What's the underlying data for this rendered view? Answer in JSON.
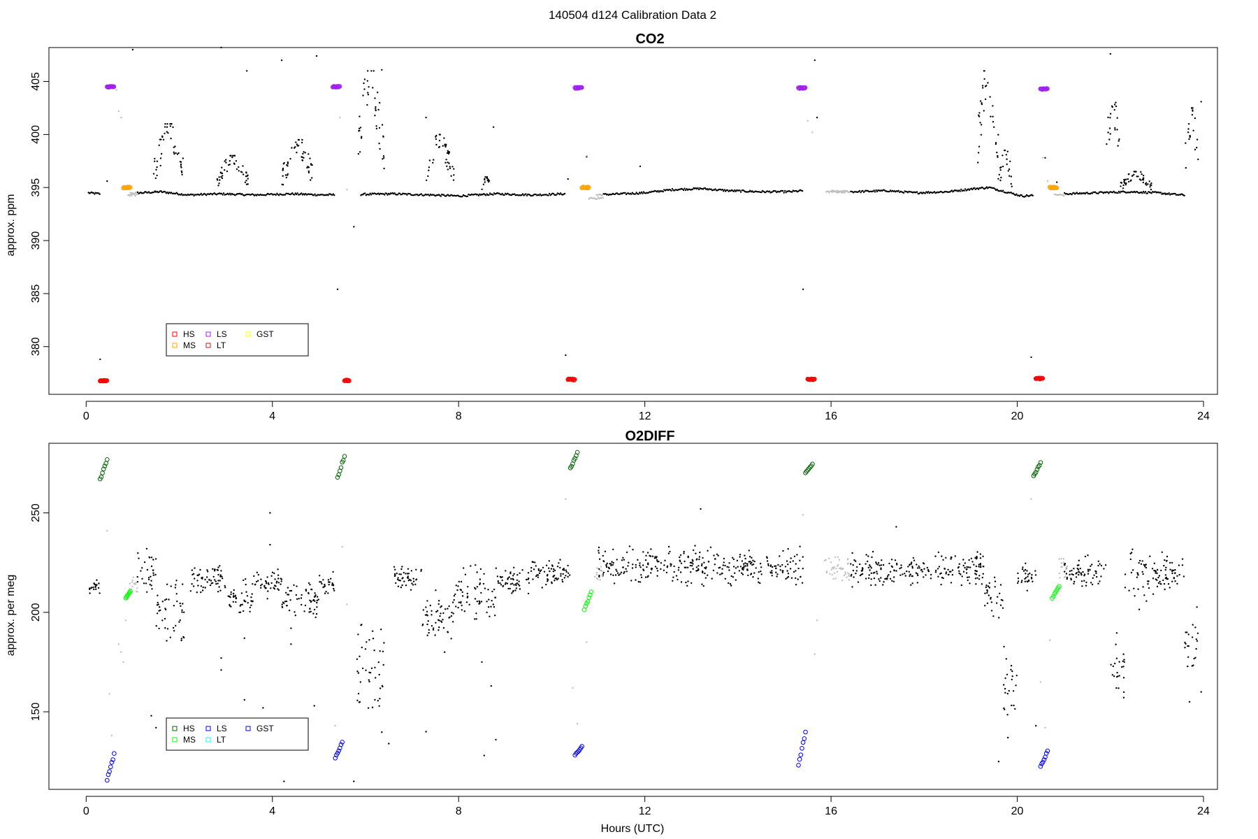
{
  "figure": {
    "suptitle": "140504   d124   Calibration Data 2"
  },
  "chart_data": [
    {
      "type": "scatter",
      "title": "CO2",
      "xlabel": "",
      "ylabel": "approx. ppm",
      "xlim": [
        -0.8,
        24.3
      ],
      "ylim": [
        375.5,
        408.2
      ],
      "xticks": [
        0,
        4,
        8,
        12,
        16,
        20,
        24
      ],
      "yticks": [
        380,
        385,
        390,
        395,
        400,
        405
      ],
      "legend": {
        "placement": "bottom-left",
        "columns": [
          [
            "HS",
            "MS"
          ],
          [
            "LS",
            "LT"
          ],
          [
            "GST"
          ]
        ],
        "entries": [
          {
            "name": "HS",
            "color": "#ff0000"
          },
          {
            "name": "MS",
            "color": "#ffa500"
          },
          {
            "name": "LS",
            "color": "#a020f0"
          },
          {
            "name": "LT",
            "color": "#b22222"
          },
          {
            "name": "GST",
            "color": "#ffff00"
          }
        ]
      },
      "colors": {
        "ambient": "#000000",
        "flush": "#bebebe"
      },
      "baseline": [
        [
          0.05,
          394.5
        ],
        [
          0.3,
          394.4
        ],
        [
          1.2,
          394.5
        ],
        [
          1.6,
          394.6
        ],
        [
          2.2,
          394.3
        ],
        [
          2.9,
          394.4
        ],
        [
          3.6,
          394.3
        ],
        [
          4.4,
          394.4
        ],
        [
          5.1,
          394.3
        ],
        [
          6.6,
          394.4
        ],
        [
          7.4,
          394.3
        ],
        [
          8.0,
          394.2
        ],
        [
          8.8,
          394.4
        ],
        [
          9.6,
          394.3
        ],
        [
          10.3,
          394.4
        ],
        [
          10.9,
          394.3
        ],
        [
          11.5,
          394.4
        ],
        [
          12.0,
          394.5
        ],
        [
          12.6,
          394.8
        ],
        [
          13.2,
          394.9
        ],
        [
          13.8,
          394.7
        ],
        [
          14.5,
          394.6
        ],
        [
          15.1,
          394.6
        ],
        [
          15.4,
          394.7
        ],
        [
          16.5,
          394.6
        ],
        [
          17.2,
          394.7
        ],
        [
          17.8,
          394.5
        ],
        [
          18.5,
          394.6
        ],
        [
          19.1,
          394.9
        ],
        [
          19.4,
          395.0
        ],
        [
          20.1,
          394.2
        ],
        [
          21.0,
          394.4
        ],
        [
          21.7,
          394.5
        ],
        [
          22.4,
          394.6
        ],
        [
          23.0,
          394.5
        ],
        [
          23.5,
          394.3
        ]
      ],
      "flush_segments": [
        [
          0.9,
          1.1,
          394.3
        ],
        [
          10.8,
          11.1,
          394.0
        ],
        [
          15.9,
          16.4,
          394.6
        ],
        [
          20.8,
          21.0,
          394.3
        ]
      ],
      "ambient_bursts": [
        {
          "start": 1.45,
          "end": 2.1,
          "low": 394.8,
          "high": 401.0
        },
        {
          "start": 2.8,
          "end": 3.5,
          "low": 394.8,
          "high": 398.0
        },
        {
          "start": 4.2,
          "end": 4.9,
          "low": 394.8,
          "high": 399.5
        },
        {
          "start": 5.8,
          "end": 6.4,
          "low": 396.0,
          "high": 406.0
        },
        {
          "start": 7.3,
          "end": 7.9,
          "low": 394.8,
          "high": 400.0
        },
        {
          "start": 8.5,
          "end": 8.7,
          "low": 394.8,
          "high": 396.0
        },
        {
          "start": 19.1,
          "end": 19.6,
          "low": 395.5,
          "high": 406.0
        },
        {
          "start": 19.6,
          "end": 19.9,
          "low": 394.6,
          "high": 398.5
        },
        {
          "start": 21.9,
          "end": 22.2,
          "low": 395.5,
          "high": 404.0
        },
        {
          "start": 22.2,
          "end": 22.9,
          "low": 394.6,
          "high": 396.5
        },
        {
          "start": 23.6,
          "end": 23.9,
          "low": 395.5,
          "high": 402.5
        }
      ],
      "outliers": [
        [
          1.0,
          408.0
        ],
        [
          2.9,
          408.2
        ],
        [
          3.45,
          406.0
        ],
        [
          4.2,
          407.0
        ],
        [
          4.95,
          407.4
        ],
        [
          5.75,
          391.3
        ],
        [
          5.4,
          385.4
        ],
        [
          6.35,
          406.1
        ],
        [
          7.3,
          401.6
        ],
        [
          8.75,
          400.7
        ],
        [
          10.3,
          379.2
        ],
        [
          10.35,
          395.8
        ],
        [
          10.75,
          397.9
        ],
        [
          11.9,
          397.0
        ],
        [
          15.4,
          385.4
        ],
        [
          15.65,
          407.0
        ],
        [
          15.7,
          401.6
        ],
        [
          20.3,
          379.0
        ],
        [
          20.6,
          397.8
        ],
        [
          20.85,
          395.5
        ],
        [
          22.0,
          407.6
        ],
        [
          23.95,
          403.1
        ],
        [
          0.3,
          378.8
        ],
        [
          0.45,
          395.6
        ]
      ],
      "cal_points": [
        {
          "series": "HS",
          "color": "#ff0000",
          "x": [
            0.3,
            0.45
          ],
          "y": 376.8
        },
        {
          "series": "HS",
          "color": "#ff0000",
          "x": [
            5.55,
            5.65
          ],
          "y": 376.8
        },
        {
          "series": "HS",
          "color": "#ff0000",
          "x": [
            10.35,
            10.5
          ],
          "y": 376.9
        },
        {
          "series": "HS",
          "color": "#ff0000",
          "x": [
            15.5,
            15.65
          ],
          "y": 376.9
        },
        {
          "series": "HS",
          "color": "#ff0000",
          "x": [
            20.4,
            20.55
          ],
          "y": 377.0
        },
        {
          "series": "LS",
          "color": "#a020f0",
          "x": [
            0.45,
            0.6
          ],
          "y": 404.5
        },
        {
          "series": "LS",
          "color": "#a020f0",
          "x": [
            5.3,
            5.45
          ],
          "y": 404.5
        },
        {
          "series": "LS",
          "color": "#a020f0",
          "x": [
            10.5,
            10.65
          ],
          "y": 404.4
        },
        {
          "series": "LS",
          "color": "#a020f0",
          "x": [
            15.3,
            15.45
          ],
          "y": 404.4
        },
        {
          "series": "LS",
          "color": "#a020f0",
          "x": [
            20.5,
            20.65
          ],
          "y": 404.3
        },
        {
          "series": "MS",
          "color": "#ffa500",
          "x": [
            0.8,
            0.95
          ],
          "y": 395.0
        },
        {
          "series": "MS",
          "color": "#ffa500",
          "x": [
            10.65,
            10.8
          ],
          "y": 395.0
        },
        {
          "series": "MS",
          "color": "#ffa500",
          "x": [
            20.7,
            20.85
          ],
          "y": 395.0
        }
      ],
      "cal_flush_points": [
        [
          0.65,
          404.2
        ],
        [
          0.7,
          402.2
        ],
        [
          0.75,
          401.6
        ],
        [
          5.45,
          401.6
        ],
        [
          5.6,
          394.8
        ],
        [
          10.75,
          398.0
        ],
        [
          15.5,
          401.3
        ],
        [
          15.6,
          400.2
        ],
        [
          20.55,
          397.8
        ],
        [
          20.65,
          395.6
        ]
      ]
    },
    {
      "type": "scatter",
      "title": "O2DIFF",
      "xlabel": "Hours (UTC)",
      "ylabel": "approx. per meg",
      "xlim": [
        -0.8,
        24.3
      ],
      "ylim": [
        111,
        285
      ],
      "xticks": [
        0,
        4,
        8,
        12,
        16,
        20,
        24
      ],
      "yticks": [
        150,
        200,
        250
      ],
      "legend": {
        "placement": "bottom-left",
        "columns": [
          [
            "HS",
            "MS"
          ],
          [
            "LS",
            "LT"
          ],
          [
            "GST"
          ]
        ],
        "entries": [
          {
            "name": "HS",
            "color": "#006400"
          },
          {
            "name": "MS",
            "color": "#00ff00"
          },
          {
            "name": "LS",
            "color": "#0000ff"
          },
          {
            "name": "LT",
            "color": "#00ffff"
          },
          {
            "name": "GST",
            "color": "#0000ff"
          }
        ]
      },
      "colors": {
        "ambient": "#000000",
        "flush": "#bebebe"
      },
      "segments": [
        {
          "start": 0.05,
          "end": 0.3,
          "center": 213,
          "spread": 3
        },
        {
          "start": 1.1,
          "end": 1.5,
          "center": 220,
          "spread": 8
        },
        {
          "start": 1.5,
          "end": 2.1,
          "center": 200,
          "spread": 14
        },
        {
          "start": 2.2,
          "end": 3.0,
          "center": 216,
          "spread": 6
        },
        {
          "start": 3.0,
          "end": 3.6,
          "center": 206,
          "spread": 7
        },
        {
          "start": 3.6,
          "end": 4.2,
          "center": 215,
          "spread": 6
        },
        {
          "start": 4.2,
          "end": 5.0,
          "center": 207,
          "spread": 8
        },
        {
          "start": 5.0,
          "end": 5.35,
          "center": 215,
          "spread": 5
        },
        {
          "start": 5.8,
          "end": 6.4,
          "center": 170,
          "spread": 20
        },
        {
          "start": 6.6,
          "end": 7.2,
          "center": 217,
          "spread": 4
        },
        {
          "start": 7.2,
          "end": 7.9,
          "center": 198,
          "spread": 9
        },
        {
          "start": 7.9,
          "end": 8.6,
          "center": 210,
          "spread": 10
        },
        {
          "start": 8.6,
          "end": 8.8,
          "center": 205,
          "spread": 6
        },
        {
          "start": 8.8,
          "end": 9.5,
          "center": 216,
          "spread": 5
        },
        {
          "start": 9.5,
          "end": 10.4,
          "center": 220,
          "spread": 5
        },
        {
          "start": 11.0,
          "end": 15.4,
          "center": 223,
          "spread": 7
        },
        {
          "start": 16.4,
          "end": 19.3,
          "center": 222,
          "spread": 6
        },
        {
          "start": 19.3,
          "end": 19.7,
          "center": 210,
          "spread": 10
        },
        {
          "start": 19.7,
          "end": 20.0,
          "center": 160,
          "spread": 15
        },
        {
          "start": 20.0,
          "end": 20.4,
          "center": 218,
          "spread": 5
        },
        {
          "start": 21.0,
          "end": 21.9,
          "center": 220,
          "spread": 6
        },
        {
          "start": 22.0,
          "end": 22.3,
          "center": 170,
          "spread": 15
        },
        {
          "start": 22.3,
          "end": 23.2,
          "center": 218,
          "spread": 10
        },
        {
          "start": 23.2,
          "end": 23.6,
          "center": 220,
          "spread": 6
        },
        {
          "start": 23.6,
          "end": 23.9,
          "center": 183,
          "spread": 12
        }
      ],
      "flush_segments": [
        {
          "start": 0.9,
          "end": 1.1,
          "center": 215,
          "spread": 5
        },
        {
          "start": 10.9,
          "end": 11.1,
          "center": 220,
          "spread": 4
        },
        {
          "start": 15.8,
          "end": 16.4,
          "center": 222,
          "spread": 6
        },
        {
          "start": 20.9,
          "end": 21.1,
          "center": 222,
          "spread": 6
        }
      ],
      "outliers": [
        [
          1.3,
          232
        ],
        [
          1.4,
          148
        ],
        [
          1.5,
          142
        ],
        [
          2.1,
          200
        ],
        [
          2.9,
          177
        ],
        [
          2.9,
          171
        ],
        [
          3.4,
          156
        ],
        [
          3.4,
          187
        ],
        [
          3.95,
          250
        ],
        [
          3.95,
          234
        ],
        [
          4.25,
          115
        ],
        [
          4.4,
          192
        ],
        [
          4.4,
          184
        ],
        [
          4.9,
          153
        ],
        [
          5.75,
          115
        ],
        [
          6.5,
          134
        ],
        [
          7.3,
          140
        ],
        [
          7.7,
          180
        ],
        [
          8.5,
          175
        ],
        [
          8.55,
          128
        ],
        [
          8.7,
          163
        ],
        [
          8.8,
          136
        ],
        [
          13.2,
          252
        ],
        [
          17.4,
          243
        ],
        [
          19.6,
          125
        ],
        [
          19.8,
          137
        ],
        [
          20.4,
          143
        ],
        [
          22.3,
          175
        ],
        [
          23.7,
          155
        ],
        [
          23.95,
          160
        ],
        [
          3.8,
          152
        ]
      ],
      "flush_points": [
        [
          0.45,
          241
        ],
        [
          0.5,
          159
        ],
        [
          0.55,
          138
        ],
        [
          0.7,
          184
        ],
        [
          0.75,
          180
        ],
        [
          0.8,
          175
        ],
        [
          0.85,
          196
        ],
        [
          5.35,
          143
        ],
        [
          5.5,
          233
        ],
        [
          5.6,
          204
        ],
        [
          10.3,
          257
        ],
        [
          10.45,
          162
        ],
        [
          10.55,
          144
        ],
        [
          10.75,
          185
        ],
        [
          15.4,
          249
        ],
        [
          15.65,
          179
        ],
        [
          15.7,
          196
        ],
        [
          20.3,
          257
        ],
        [
          20.5,
          165
        ],
        [
          20.6,
          142
        ],
        [
          20.7,
          186
        ],
        [
          0.9,
          207
        ],
        [
          1.0,
          216
        ]
      ],
      "cal_points": [
        {
          "series": "HS",
          "color": "#006400",
          "x": [
            0.3,
            0.45
          ],
          "low": 266,
          "high": 278
        },
        {
          "series": "HS",
          "color": "#006400",
          "x": [
            5.4,
            5.55
          ],
          "low": 267,
          "high": 280
        },
        {
          "series": "HS",
          "color": "#006400",
          "x": [
            10.4,
            10.55
          ],
          "low": 272,
          "high": 281
        },
        {
          "series": "HS",
          "color": "#006400",
          "x": [
            15.45,
            15.6
          ],
          "low": 270,
          "high": 275
        },
        {
          "series": "HS",
          "color": "#006400",
          "x": [
            20.35,
            20.5
          ],
          "low": 268,
          "high": 276
        },
        {
          "series": "MS",
          "color": "#00ff00",
          "x": [
            0.85,
            0.95
          ],
          "low": 207,
          "high": 211
        },
        {
          "series": "MS",
          "color": "#00ff00",
          "x": [
            10.7,
            10.85
          ],
          "low": 201,
          "high": 211
        },
        {
          "series": "MS",
          "color": "#00ff00",
          "x": [
            20.75,
            20.9
          ],
          "low": 207,
          "high": 214
        },
        {
          "series": "LS",
          "color": "#0000ff",
          "x": [
            0.45,
            0.6
          ],
          "low": 115,
          "high": 130
        },
        {
          "series": "LS",
          "color": "#0000ff",
          "x": [
            5.35,
            5.5
          ],
          "low": 126,
          "high": 136
        },
        {
          "series": "LS",
          "color": "#0000ff",
          "x": [
            10.5,
            10.65
          ],
          "low": 128,
          "high": 133
        },
        {
          "series": "LS",
          "color": "#0000ff",
          "x": [
            15.3,
            15.45
          ],
          "low": 122,
          "high": 142
        },
        {
          "series": "LS",
          "color": "#0000ff",
          "x": [
            20.5,
            20.65
          ],
          "low": 122,
          "high": 131
        }
      ]
    }
  ]
}
